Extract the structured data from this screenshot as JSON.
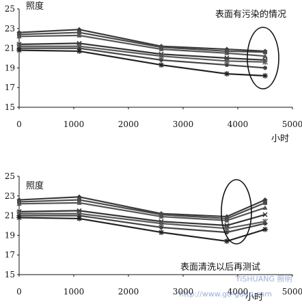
{
  "chart_data": [
    {
      "type": "line",
      "ylabel": "照度",
      "xlabel": "小时",
      "annotation": "表面有污染的情况",
      "xlim": [
        0,
        5000
      ],
      "ylim": [
        15,
        25
      ],
      "xticks": [
        0,
        1000,
        2000,
        3000,
        4000,
        5000
      ],
      "yticks": [
        15,
        17,
        19,
        21,
        23,
        25
      ],
      "grid": false,
      "legend": "none",
      "annotation_marker": "ellipse around last points",
      "x": [
        0,
        1100,
        2600,
        3800,
        4500
      ],
      "series": [
        {
          "marker": "diamond",
          "values": [
            22.6,
            22.9,
            21.2,
            20.9,
            20.7
          ]
        },
        {
          "marker": "square",
          "values": [
            22.4,
            22.6,
            21.1,
            20.7,
            20.6
          ]
        },
        {
          "marker": "triangle",
          "values": [
            22.2,
            22.3,
            20.9,
            20.5,
            20.2
          ]
        },
        {
          "marker": "x",
          "values": [
            21.4,
            21.5,
            20.4,
            20.0,
            19.8
          ]
        },
        {
          "marker": "star",
          "values": [
            21.2,
            21.2,
            20.2,
            19.7,
            19.6
          ]
        },
        {
          "marker": "circle",
          "values": [
            21.0,
            21.0,
            19.8,
            19.3,
            19.0
          ]
        },
        {
          "marker": "plus",
          "values": [
            20.8,
            20.7,
            19.3,
            18.4,
            18.2
          ]
        }
      ]
    },
    {
      "type": "line",
      "ylabel": "照度",
      "xlabel": "小时",
      "annotation": "表面清洗以后再测试",
      "xlim": [
        0,
        5000
      ],
      "ylim": [
        15,
        25
      ],
      "xticks": [
        0,
        1000,
        2000,
        3000,
        4000,
        5000
      ],
      "yticks": [
        15,
        17,
        19,
        21,
        23,
        25
      ],
      "grid": false,
      "legend": "none",
      "annotation_marker": "ellipse around last points",
      "x": [
        0,
        1100,
        2600,
        3800,
        4500
      ],
      "series": [
        {
          "marker": "diamond",
          "values": [
            22.6,
            22.9,
            21.2,
            20.9,
            22.6
          ]
        },
        {
          "marker": "square",
          "values": [
            22.4,
            22.6,
            21.1,
            20.7,
            22.3
          ]
        },
        {
          "marker": "triangle",
          "values": [
            22.2,
            22.3,
            20.9,
            20.5,
            21.8
          ]
        },
        {
          "marker": "x",
          "values": [
            21.4,
            21.5,
            20.4,
            20.0,
            21.1
          ]
        },
        {
          "marker": "star",
          "values": [
            21.2,
            21.2,
            20.2,
            19.7,
            20.4
          ]
        },
        {
          "marker": "circle",
          "values": [
            21.0,
            21.0,
            19.8,
            19.3,
            20.2
          ]
        },
        {
          "marker": "plus",
          "values": [
            20.8,
            20.7,
            19.3,
            18.4,
            19.6
          ]
        }
      ]
    }
  ],
  "watermark": {
    "brand": "YiSHUANG 照明",
    "url": "http://www.go-gddq.com"
  },
  "colors": {
    "series": [
      "#3a3a3a",
      "#4a4a4a",
      "#555555",
      "#333333",
      "#5a5a5a",
      "#444444",
      "#222222"
    ],
    "axis": "#111111",
    "watermark": "#4a6fb5"
  }
}
